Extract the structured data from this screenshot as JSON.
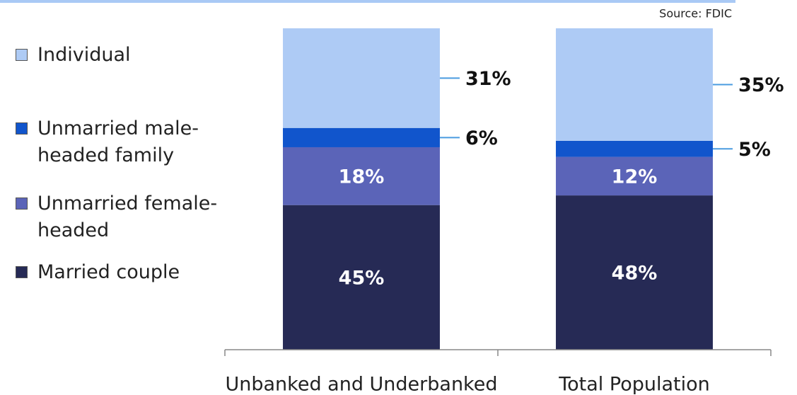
{
  "chart_data": {
    "type": "stacked_bar",
    "source": "Source: FDIC",
    "categories": [
      "Unbanked and Underbanked",
      "Total Population"
    ],
    "ylim": [
      0,
      100
    ],
    "series": [
      {
        "name": "Married couple",
        "color": "#262a55",
        "values": [
          45,
          48
        ],
        "value_labels": [
          "45%",
          "48%"
        ]
      },
      {
        "name": "Unmarried female-headed",
        "color": "#5b64b8",
        "values": [
          18,
          12
        ],
        "value_labels": [
          "18%",
          "12%"
        ]
      },
      {
        "name": "Unmarried male-headed family",
        "color": "#1155cc",
        "values": [
          6,
          5
        ],
        "value_labels": [
          "6%",
          "5%"
        ]
      },
      {
        "name": "Individual",
        "color": "#aecbf5",
        "values": [
          31,
          35
        ],
        "value_labels": [
          "31%",
          "35%"
        ]
      }
    ]
  }
}
